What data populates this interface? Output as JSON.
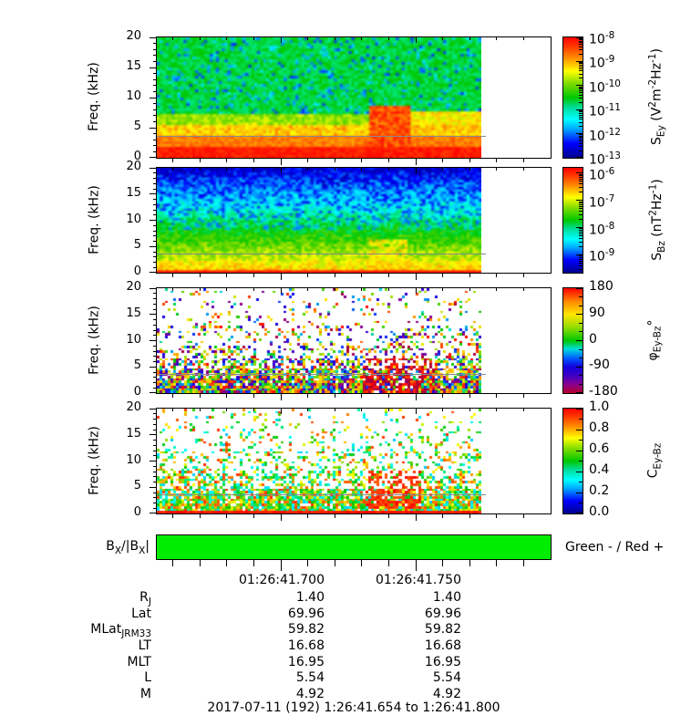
{
  "figure": {
    "caption": "2017-07-11 (192) 1:26:41.654 to 1:26:41.800",
    "background": "#ffffff",
    "text_color": "#000000"
  },
  "sign_bar": {
    "label_tokens": [
      {
        "t": "B"
      },
      {
        "sub": "X"
      },
      {
        "t": "/|B"
      },
      {
        "sub": "X"
      },
      {
        "t": "|"
      }
    ],
    "legend": "Green - / Red +",
    "value": "negative (solid green) for entire interval",
    "color_hex": "#00ec00"
  },
  "time_axis": {
    "start_label": "1:26:41.654",
    "end_label": "1:26:41.800",
    "major_tick_labels": [
      "01:26:41.700",
      "01:26:41.750"
    ],
    "major_tick_seconds": [
      41.7,
      41.75
    ],
    "range_seconds": [
      41.654,
      41.8
    ],
    "minor_step_seconds": 0.01
  },
  "ephemeris": {
    "rows": [
      {
        "label_tokens": [
          {
            "t": "R"
          },
          {
            "sub": "J"
          }
        ],
        "values": [
          "1.40",
          "1.40"
        ]
      },
      {
        "label_tokens": [
          {
            "t": "Lat"
          }
        ],
        "values": [
          "69.96",
          "69.96"
        ]
      },
      {
        "label_tokens": [
          {
            "t": "MLat"
          },
          {
            "sub": "JRM33"
          }
        ],
        "values": [
          "59.82",
          "59.82"
        ]
      },
      {
        "label_tokens": [
          {
            "t": "LT"
          }
        ],
        "values": [
          "16.68",
          "16.68"
        ]
      },
      {
        "label_tokens": [
          {
            "t": "MLT"
          }
        ],
        "values": [
          "16.95",
          "16.95"
        ]
      },
      {
        "label_tokens": [
          {
            "t": "L"
          }
        ],
        "values": [
          "5.54",
          "5.54"
        ]
      },
      {
        "label_tokens": [
          {
            "t": "M"
          }
        ],
        "values": [
          "4.92",
          "4.92"
        ]
      }
    ]
  },
  "chart_data": [
    {
      "type": "heatmap",
      "name": "electric-field-spectral-density",
      "ylabel": "Freq. (kHz)",
      "y_range": [
        0,
        20
      ],
      "y_tick_labels": [
        "0",
        "5",
        "10",
        "15",
        "20"
      ],
      "x_range": [
        "01:26:41.654",
        "01:26:41.800"
      ],
      "data_coverage": "colour data ends at ~01:26:41.774; remainder of panel blank",
      "overlay_line_khz": 3.6,
      "colorbar": {
        "scale": "log",
        "range": [
          "1e-8",
          "1e-13"
        ],
        "title_tokens": [
          {
            "t": "S"
          },
          {
            "sub": "Ey"
          },
          {
            "t": " (V"
          },
          {
            "sup": "2"
          },
          {
            "t": "m"
          },
          {
            "sup": "-2"
          },
          {
            "t": "Hz"
          },
          {
            "sup": "-1"
          },
          {
            "t": ")"
          }
        ],
        "ticks": [
          {
            "frac": 0.0,
            "tokens": [
              {
                "t": "10"
              },
              {
                "sup": "-8"
              }
            ]
          },
          {
            "frac": 0.2,
            "tokens": [
              {
                "t": "10"
              },
              {
                "sup": "-9"
              }
            ]
          },
          {
            "frac": 0.4,
            "tokens": [
              {
                "t": "10"
              },
              {
                "sup": "-10"
              }
            ]
          },
          {
            "frac": 0.6,
            "tokens": [
              {
                "t": "10"
              },
              {
                "sup": "-11"
              }
            ]
          },
          {
            "frac": 0.8,
            "tokens": [
              {
                "t": "10"
              },
              {
                "sup": "-12"
              }
            ]
          },
          {
            "frac": 1.0,
            "tokens": [
              {
                "t": "10"
              },
              {
                "sup": "-13"
              }
            ]
          }
        ]
      },
      "summary": "Intense red (>1e-9 V2m-2Hz-1) below ~4 kHz, yellow-orange band 4-6 kHz, green ~1e-11 with dark-blue speckles above 7 kHz; strong burst to ~8 kHz near 01:26:41.74 and enhanced 5-7.5 kHz band after it; thin gray line at ~3.6 kHz."
    },
    {
      "type": "heatmap",
      "name": "magnetic-field-spectral-density",
      "ylabel": "Freq. (kHz)",
      "y_range": [
        0,
        20
      ],
      "y_tick_labels": [
        "0",
        "5",
        "10",
        "15",
        "20"
      ],
      "x_range": [
        "01:26:41.654",
        "01:26:41.800"
      ],
      "overlay_line_khz": 3.6,
      "colorbar": {
        "scale": "log",
        "range": [
          "~1e-6 top",
          "~1e-10 bottom"
        ],
        "title_tokens": [
          {
            "t": "S"
          },
          {
            "sub": "Bz"
          },
          {
            "t": " (nT"
          },
          {
            "sup": "2"
          },
          {
            "t": "Hz"
          },
          {
            "sup": "-1"
          },
          {
            "t": ")"
          }
        ],
        "ticks": [
          {
            "frac": 0.05,
            "tokens": [
              {
                "t": "10"
              },
              {
                "sup": "-6"
              }
            ]
          },
          {
            "frac": 0.31,
            "tokens": [
              {
                "t": "10"
              },
              {
                "sup": "-7"
              }
            ]
          },
          {
            "frac": 0.57,
            "tokens": [
              {
                "t": "10"
              },
              {
                "sup": "-8"
              }
            ]
          },
          {
            "frac": 0.83,
            "tokens": [
              {
                "t": "10"
              },
              {
                "sup": "-9"
              }
            ]
          }
        ]
      },
      "summary": "Red band below ~1 kHz, yellow-green 1-3 kHz, green-cyan 3-8 kHz, dark blue/black speckle above 8 kHz; arc-shaped yellow-orange enhancement 2-6 kHz near 01:26:41.74."
    },
    {
      "type": "heatmap",
      "name": "ey-bz-cross-phase",
      "ylabel": "Freq. (kHz)",
      "y_range": [
        0,
        20
      ],
      "y_tick_labels": [
        "0",
        "5",
        "10",
        "15",
        "20"
      ],
      "x_range": [
        "01:26:41.654",
        "01:26:41.800"
      ],
      "overlay_line_khz": 3.6,
      "colorbar": {
        "scale": "linear",
        "range": [
          180,
          -180
        ],
        "minor_divisions": 3,
        "title_tokens": [
          {
            "t": "φ"
          },
          {
            "sub": "Ey-Bz"
          },
          {
            "t": "°"
          }
        ],
        "ticks": [
          {
            "frac": 0.0,
            "tokens": [
              {
                "t": "180"
              }
            ]
          },
          {
            "frac": 0.25,
            "tokens": [
              {
                "t": "90"
              }
            ]
          },
          {
            "frac": 0.5,
            "tokens": [
              {
                "t": "0"
              }
            ]
          },
          {
            "frac": 0.75,
            "tokens": [
              {
                "t": "-90"
              }
            ]
          },
          {
            "frac": 1.0,
            "tokens": [
              {
                "t": "-180"
              }
            ]
          }
        ]
      },
      "summary": "White background with multicolour phase speckle, dense below ~6 kHz and sparse above; predominantly ±180° (red/maroon) patch at 2-7 kHz near 01:26:41.74."
    },
    {
      "type": "heatmap",
      "name": "ey-bz-coherence",
      "ylabel": "Freq. (kHz)",
      "y_range": [
        0,
        20
      ],
      "y_tick_labels": [
        "0",
        "5",
        "10",
        "15",
        "20"
      ],
      "x_range": [
        "01:26:41.654",
        "01:26:41.800"
      ],
      "overlay_line_khz": 3.6,
      "colorbar": {
        "scale": "linear",
        "range": [
          1.0,
          0.0
        ],
        "minor_divisions": 2,
        "title_tokens": [
          {
            "t": "C"
          },
          {
            "sub": "Ey-Bz"
          }
        ],
        "ticks": [
          {
            "frac": 0.0,
            "tokens": [
              {
                "t": "1.0"
              }
            ]
          },
          {
            "frac": 0.2,
            "tokens": [
              {
                "t": "0.8"
              }
            ]
          },
          {
            "frac": 0.4,
            "tokens": [
              {
                "t": "0.6"
              }
            ]
          },
          {
            "frac": 0.6,
            "tokens": [
              {
                "t": "0.4"
              }
            ]
          },
          {
            "frac": 0.8,
            "tokens": [
              {
                "t": "0.2"
              }
            ]
          },
          {
            "frac": 1.0,
            "tokens": [
              {
                "t": "0.0"
              }
            ]
          }
        ]
      },
      "summary": "Solid red coherence band at 0-0.5 kHz, dense multicolour speckle below ~5 kHz thinning upward; high-coherence red blob 2-8 kHz near 01:26:41.74."
    }
  ]
}
